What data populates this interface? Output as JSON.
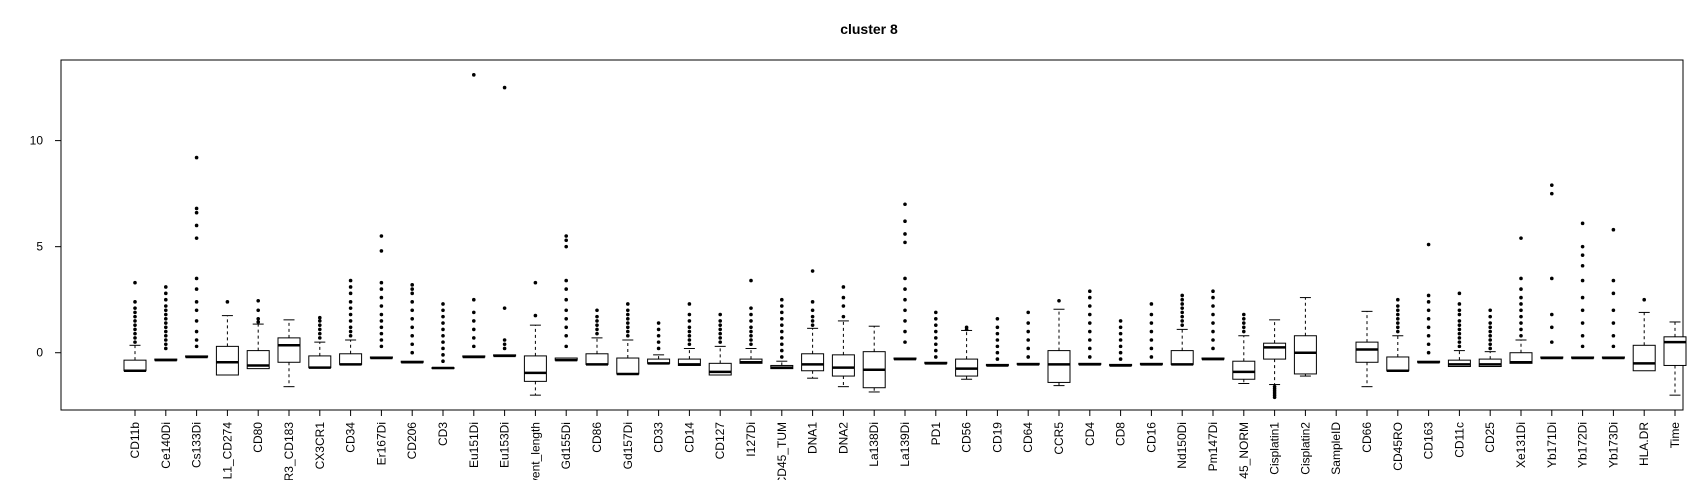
{
  "chart_data": {
    "type": "boxplot",
    "title": "cluster 8",
    "xlabel": "",
    "ylabel": "",
    "ylim": [
      -2.7,
      13.8
    ],
    "yticks": [
      0,
      5,
      10
    ],
    "grid": false,
    "legend": "none",
    "box_color": "#000000",
    "categories": [
      "CD11b",
      "Ce140Di",
      "Cs133Di",
      "L1_CD274",
      "CD80",
      "R3_CD183",
      "CX3CR1",
      "CD34",
      "Er167Di",
      "CD206",
      "CD3",
      "Eu151Di",
      "Eu153Di",
      "vent_length",
      "Gd155Di",
      "CD86",
      "Gd157Di",
      "CD33",
      "CD14",
      "CD127",
      "I127Di",
      "CD45_TUM",
      "DNA1",
      "DNA2",
      "La138Di",
      "La139Di",
      "PD1",
      "CD56",
      "CD19",
      "CD64",
      "CCR5",
      "CD4",
      "CD8",
      "CD16",
      "Nd150Di",
      "Pm147Di",
      "45_NORM",
      "Cisplatin1",
      "Cisplatin2",
      "SampleID",
      "CD66",
      "CD45RO",
      "CD163",
      "CD11c",
      "CD25",
      "Xe131Di",
      "Yb171Di",
      "Yb172Di",
      "Yb173Di",
      "HLA.DR",
      "Time"
    ],
    "boxes": [
      {
        "min": -0.85,
        "q1": -0.85,
        "median": -0.85,
        "q3": -0.35,
        "max": 0.35,
        "outliers": [
          0.5,
          0.7,
          0.9,
          1.1,
          1.3,
          1.5,
          1.7,
          1.9,
          2.1,
          2.4,
          3.3
        ]
      },
      {
        "min": -0.35,
        "q1": -0.35,
        "median": -0.35,
        "q3": -0.3,
        "max": -0.3,
        "outliers": [
          0.2,
          0.4,
          0.6,
          0.8,
          1.0,
          1.2,
          1.4,
          1.6,
          1.8,
          2.0,
          2.2,
          2.5,
          2.8,
          3.1
        ]
      },
      {
        "min": -0.2,
        "q1": -0.2,
        "median": -0.2,
        "q3": -0.15,
        "max": -0.15,
        "outliers": [
          0.3,
          0.6,
          1.0,
          1.5,
          2.0,
          2.4,
          3.0,
          3.5,
          5.4,
          6.0,
          6.6,
          6.8,
          9.2
        ]
      },
      {
        "min": -1.05,
        "q1": -1.05,
        "median": -0.45,
        "q3": 0.3,
        "max": 1.75,
        "outliers": [
          2.4
        ]
      },
      {
        "min": -0.75,
        "q1": -0.75,
        "median": -0.6,
        "q3": 0.1,
        "max": 1.35,
        "outliers": [
          1.45,
          1.6,
          2.0,
          2.45
        ]
      },
      {
        "min": -1.6,
        "q1": -0.45,
        "median": 0.35,
        "q3": 0.7,
        "max": 1.55,
        "outliers": []
      },
      {
        "min": -0.7,
        "q1": -0.7,
        "median": -0.7,
        "q3": -0.15,
        "max": 0.5,
        "outliers": [
          0.7,
          0.9,
          1.1,
          1.3,
          1.5,
          1.65
        ]
      },
      {
        "min": -0.55,
        "q1": -0.55,
        "median": -0.55,
        "q3": -0.05,
        "max": 0.6,
        "outliers": [
          0.8,
          1.0,
          1.2,
          1.5,
          1.8,
          2.1,
          2.4,
          2.8,
          3.1,
          3.4
        ]
      },
      {
        "min": -0.25,
        "q1": -0.25,
        "median": -0.25,
        "q3": -0.2,
        "max": -0.2,
        "outliers": [
          0.3,
          0.6,
          0.9,
          1.2,
          1.5,
          1.8,
          2.2,
          2.6,
          3.0,
          3.3,
          4.8,
          5.5
        ]
      },
      {
        "min": -0.45,
        "q1": -0.45,
        "median": -0.45,
        "q3": -0.4,
        "max": -0.4,
        "outliers": [
          0.0,
          0.4,
          0.8,
          1.2,
          1.6,
          2.0,
          2.4,
          2.8,
          3.0,
          3.2
        ]
      },
      {
        "min": -0.72,
        "q1": -0.72,
        "median": -0.72,
        "q3": -0.7,
        "max": -0.7,
        "outliers": [
          -0.4,
          -0.1,
          0.2,
          0.5,
          0.8,
          1.1,
          1.4,
          1.7,
          2.0,
          2.3
        ]
      },
      {
        "min": -0.2,
        "q1": -0.2,
        "median": -0.2,
        "q3": -0.15,
        "max": -0.15,
        "outliers": [
          0.3,
          0.7,
          1.1,
          1.5,
          1.9,
          2.5,
          13.1
        ]
      },
      {
        "min": -0.15,
        "q1": -0.15,
        "median": -0.15,
        "q3": -0.1,
        "max": -0.1,
        "outliers": [
          0.2,
          0.4,
          0.6,
          2.1,
          12.5
        ]
      },
      {
        "min": -2.0,
        "q1": -1.35,
        "median": -0.95,
        "q3": -0.15,
        "max": 1.3,
        "outliers": [
          1.75,
          3.3
        ]
      },
      {
        "min": -0.35,
        "q1": -0.35,
        "median": -0.35,
        "q3": -0.25,
        "max": -0.25,
        "outliers": [
          0.3,
          0.8,
          1.2,
          1.6,
          2.0,
          2.5,
          3.0,
          3.4,
          5.0,
          5.3,
          5.5
        ]
      },
      {
        "min": -0.55,
        "q1": -0.55,
        "median": -0.55,
        "q3": -0.05,
        "max": 0.7,
        "outliers": [
          0.9,
          1.1,
          1.3,
          1.5,
          1.7,
          2.0
        ]
      },
      {
        "min": -1.0,
        "q1": -1.0,
        "median": -1.0,
        "q3": -0.25,
        "max": 0.6,
        "outliers": [
          0.8,
          1.0,
          1.2,
          1.4,
          1.6,
          1.8,
          2.0,
          2.3
        ]
      },
      {
        "min": -0.5,
        "q1": -0.5,
        "median": -0.5,
        "q3": -0.3,
        "max": -0.1,
        "outliers": [
          0.2,
          0.5,
          0.8,
          1.1,
          1.4
        ]
      },
      {
        "min": -0.6,
        "q1": -0.6,
        "median": -0.55,
        "q3": -0.3,
        "max": 0.2,
        "outliers": [
          0.4,
          0.6,
          0.8,
          1.0,
          1.2,
          1.5,
          1.8,
          2.3
        ]
      },
      {
        "min": -1.05,
        "q1": -1.05,
        "median": -0.9,
        "q3": -0.5,
        "max": 0.3,
        "outliers": [
          0.5,
          0.7,
          0.9,
          1.1,
          1.3,
          1.5,
          1.8
        ]
      },
      {
        "min": -0.5,
        "q1": -0.5,
        "median": -0.45,
        "q3": -0.3,
        "max": 0.2,
        "outliers": [
          0.4,
          0.6,
          0.8,
          1.0,
          1.2,
          1.5,
          1.8,
          2.1,
          3.4
        ]
      },
      {
        "min": -0.75,
        "q1": -0.75,
        "median": -0.7,
        "q3": -0.6,
        "max": -0.4,
        "outliers": [
          -0.2,
          0.1,
          0.4,
          0.7,
          1.0,
          1.3,
          1.6,
          1.9,
          2.2,
          2.5
        ]
      },
      {
        "min": -1.2,
        "q1": -0.85,
        "median": -0.55,
        "q3": -0.05,
        "max": 1.15,
        "outliers": [
          1.3,
          1.5,
          1.7,
          2.0,
          2.4,
          3.85
        ]
      },
      {
        "min": -1.6,
        "q1": -1.1,
        "median": -0.7,
        "q3": -0.1,
        "max": 1.5,
        "outliers": [
          1.7,
          2.2,
          2.6,
          3.1
        ]
      },
      {
        "min": -1.85,
        "q1": -1.65,
        "median": -0.8,
        "q3": 0.05,
        "max": 1.25,
        "outliers": []
      },
      {
        "min": -0.3,
        "q1": -0.3,
        "median": -0.3,
        "q3": -0.25,
        "max": -0.25,
        "outliers": [
          0.5,
          1.0,
          1.5,
          2.0,
          2.5,
          3.0,
          3.5,
          5.2,
          5.6,
          6.2,
          7.0
        ]
      },
      {
        "min": -0.5,
        "q1": -0.5,
        "median": -0.5,
        "q3": -0.45,
        "max": -0.45,
        "outliers": [
          -0.2,
          0.1,
          0.4,
          0.7,
          1.0,
          1.3,
          1.6,
          1.9
        ]
      },
      {
        "min": -1.25,
        "q1": -1.1,
        "median": -0.75,
        "q3": -0.3,
        "max": 1.05,
        "outliers": [
          1.1,
          1.2
        ]
      },
      {
        "min": -0.6,
        "q1": -0.6,
        "median": -0.6,
        "q3": -0.55,
        "max": -0.55,
        "outliers": [
          -0.3,
          0.0,
          0.3,
          0.6,
          0.9,
          1.2,
          1.6
        ]
      },
      {
        "min": -0.55,
        "q1": -0.55,
        "median": -0.55,
        "q3": -0.5,
        "max": -0.5,
        "outliers": [
          -0.2,
          0.2,
          0.6,
          1.0,
          1.4,
          1.9
        ]
      },
      {
        "min": -1.55,
        "q1": -1.4,
        "median": -0.55,
        "q3": 0.1,
        "max": 2.05,
        "outliers": [
          2.45
        ]
      },
      {
        "min": -0.55,
        "q1": -0.55,
        "median": -0.55,
        "q3": -0.5,
        "max": -0.5,
        "outliers": [
          -0.2,
          0.2,
          0.6,
          1.0,
          1.4,
          1.8,
          2.2,
          2.6,
          2.9
        ]
      },
      {
        "min": -0.6,
        "q1": -0.6,
        "median": -0.6,
        "q3": -0.55,
        "max": -0.55,
        "outliers": [
          -0.3,
          0.0,
          0.3,
          0.6,
          0.9,
          1.2,
          1.5
        ]
      },
      {
        "min": -0.55,
        "q1": -0.55,
        "median": -0.55,
        "q3": -0.5,
        "max": -0.5,
        "outliers": [
          -0.2,
          0.2,
          0.6,
          1.0,
          1.4,
          1.8,
          2.3
        ]
      },
      {
        "min": -0.55,
        "q1": -0.55,
        "median": -0.55,
        "q3": 0.1,
        "max": 1.1,
        "outliers": [
          1.3,
          1.5,
          1.7,
          1.9,
          2.1,
          2.3,
          2.5,
          2.7
        ]
      },
      {
        "min": -0.3,
        "q1": -0.3,
        "median": -0.3,
        "q3": -0.25,
        "max": -0.25,
        "outliers": [
          0.2,
          0.6,
          1.0,
          1.4,
          1.8,
          2.2,
          2.6,
          2.9
        ]
      },
      {
        "min": -1.45,
        "q1": -1.25,
        "median": -0.9,
        "q3": -0.4,
        "max": 0.8,
        "outliers": [
          1.0,
          1.2,
          1.4,
          1.6,
          1.8
        ]
      },
      {
        "min": -1.5,
        "q1": -0.3,
        "median": 0.25,
        "q3": 0.45,
        "max": 1.55,
        "outliers": [
          -1.6,
          -1.7,
          -1.8,
          -1.9,
          -2.0,
          -2.1
        ]
      },
      {
        "min": -1.1,
        "q1": -1.0,
        "median": 0.0,
        "q3": 0.8,
        "max": 2.6,
        "outliers": []
      },
      {
        "min": null,
        "q1": null,
        "median": null,
        "q3": null,
        "max": null,
        "outliers": []
      },
      {
        "min": -1.6,
        "q1": -0.45,
        "median": 0.15,
        "q3": 0.5,
        "max": 1.95,
        "outliers": []
      },
      {
        "min": -0.85,
        "q1": -0.85,
        "median": -0.85,
        "q3": -0.2,
        "max": 0.8,
        "outliers": [
          1.0,
          1.2,
          1.4,
          1.6,
          1.8,
          2.0,
          2.2,
          2.5
        ]
      },
      {
        "min": -0.45,
        "q1": -0.45,
        "median": -0.45,
        "q3": -0.4,
        "max": -0.4,
        "outliers": [
          0.0,
          0.4,
          0.8,
          1.2,
          1.6,
          2.0,
          2.4,
          2.7,
          5.1
        ]
      },
      {
        "min": -0.65,
        "q1": -0.65,
        "median": -0.55,
        "q3": -0.35,
        "max": 0.1,
        "outliers": [
          0.3,
          0.5,
          0.7,
          0.9,
          1.1,
          1.3,
          1.5,
          1.8,
          2.0,
          2.3,
          2.8
        ]
      },
      {
        "min": -0.65,
        "q1": -0.65,
        "median": -0.55,
        "q3": -0.3,
        "max": 0.05,
        "outliers": [
          0.2,
          0.4,
          0.6,
          0.8,
          1.0,
          1.2,
          1.4,
          1.7,
          2.0
        ]
      },
      {
        "min": -0.5,
        "q1": -0.5,
        "median": -0.45,
        "q3": 0.0,
        "max": 0.6,
        "outliers": [
          0.8,
          1.1,
          1.4,
          1.7,
          2.0,
          2.3,
          2.6,
          3.0,
          3.5,
          5.4
        ]
      },
      {
        "min": -0.25,
        "q1": -0.25,
        "median": -0.25,
        "q3": -0.2,
        "max": -0.2,
        "outliers": [
          0.5,
          1.2,
          1.8,
          3.5,
          7.5,
          7.9
        ]
      },
      {
        "min": -0.25,
        "q1": -0.25,
        "median": -0.25,
        "q3": -0.2,
        "max": -0.2,
        "outliers": [
          0.3,
          0.8,
          1.4,
          2.0,
          2.6,
          3.4,
          4.1,
          4.6,
          5.0,
          6.1
        ]
      },
      {
        "min": -0.25,
        "q1": -0.25,
        "median": -0.25,
        "q3": -0.2,
        "max": -0.2,
        "outliers": [
          0.3,
          0.8,
          1.4,
          2.0,
          2.8,
          3.4,
          5.8
        ]
      },
      {
        "min": -0.85,
        "q1": -0.85,
        "median": -0.5,
        "q3": 0.35,
        "max": 1.9,
        "outliers": [
          2.5
        ]
      },
      {
        "min": -2.0,
        "q1": -0.6,
        "median": 0.5,
        "q3": 0.75,
        "max": 1.45,
        "outliers": []
      }
    ]
  }
}
